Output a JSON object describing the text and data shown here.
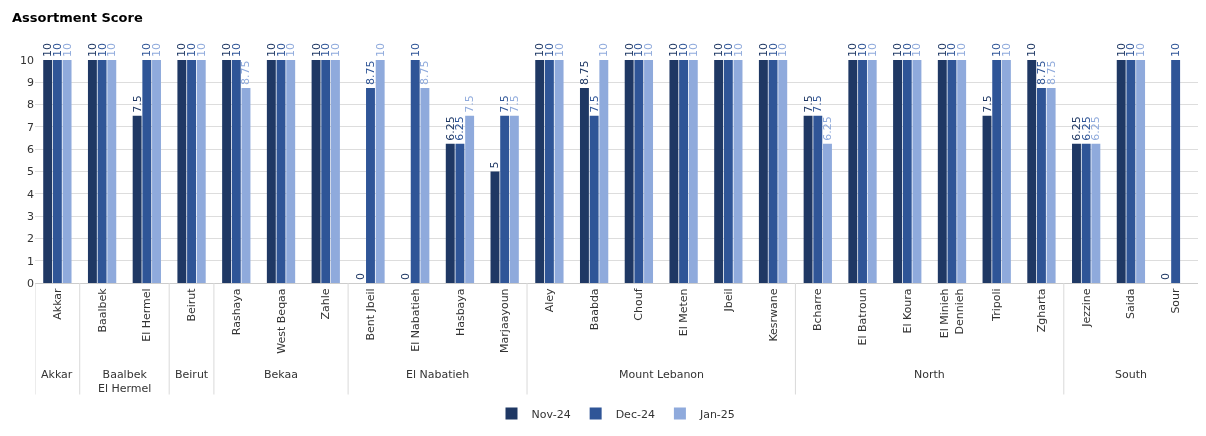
{
  "chart_data": {
    "type": "bar",
    "title": "Assortment Score",
    "categories": [
      "Akkar",
      "Baalbek",
      "El Hermel",
      "Beirut",
      "Rashaya",
      "West Beqaa",
      "Zahle",
      "Bent Jbeil",
      "El Nabatieh",
      "Hasbaya",
      "Marjaayoun",
      "Aley",
      "Baabda",
      "Chouf",
      "El Meten",
      "Jbeil",
      "Kesrwane",
      "Bcharre",
      "El Batroun",
      "El Koura",
      "El Minieh Dennieh",
      "Tripoli",
      "Zgharta",
      "Jezzine",
      "Saida",
      "Sour"
    ],
    "series": [
      {
        "name": "Nov-24",
        "color": "#1f3864",
        "values": [
          10,
          10,
          7.5,
          10,
          10,
          10,
          10,
          0,
          0,
          6.25,
          5,
          10,
          8.75,
          10,
          10,
          10,
          10,
          7.5,
          10,
          10,
          10,
          7.5,
          10,
          6.25,
          10,
          0
        ]
      },
      {
        "name": "Dec-24",
        "color": "#2f5597",
        "values": [
          10,
          10,
          10,
          10,
          10,
          10,
          10,
          8.75,
          10,
          6.25,
          7.5,
          10,
          7.5,
          10,
          10,
          10,
          10,
          7.5,
          10,
          10,
          10,
          10,
          8.75,
          6.25,
          10,
          10
        ]
      },
      {
        "name": "Jan-25",
        "color": "#8faadc",
        "values": [
          10,
          10,
          10,
          10,
          8.75,
          10,
          10,
          10,
          8.75,
          7.5,
          7.5,
          10,
          10,
          10,
          10,
          10,
          10,
          6.25,
          10,
          10,
          10,
          10,
          8.75,
          6.25,
          10,
          null
        ]
      }
    ],
    "annotations": [
      "Akkar",
      "Baalbek El Hermel",
      "Beirut",
      "Bekaa",
      "El Nabatieh",
      "Mount Lebanon",
      "North",
      "South"
    ],
    "ylim": [
      0,
      10
    ],
    "yticks": [
      0,
      1,
      2,
      3,
      4,
      5,
      6,
      7,
      8,
      9,
      10
    ],
    "grid": "y",
    "legend": "bottom",
    "data_labels": true
  }
}
